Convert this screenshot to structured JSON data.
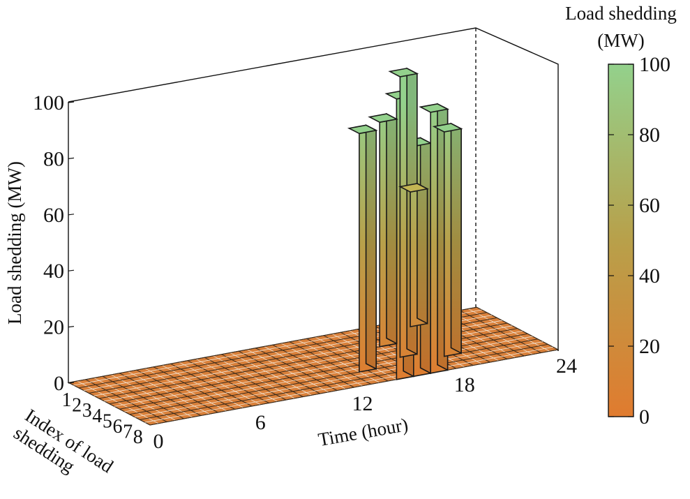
{
  "chart_data": {
    "type": "bar3d",
    "zlabel": "Load shedding (MW)",
    "xlabel": "Time (hour)",
    "ylabel": "Index of load shedding",
    "x_ticks": [
      "0",
      "6",
      "12",
      "18",
      "24"
    ],
    "y_ticks": [
      "8",
      "7",
      "6",
      "5",
      "4",
      "3",
      "2",
      "1"
    ],
    "z_ticks": [
      "0",
      "20",
      "40",
      "60",
      "80",
      "100"
    ],
    "xlim": [
      0,
      24
    ],
    "ylim": [
      1,
      8
    ],
    "zlim": [
      0,
      100
    ],
    "colorbar": {
      "title_line1": "Load shedding",
      "title_line2": "(MW)",
      "ticks": [
        "0",
        "20",
        "40",
        "60",
        "80",
        "100"
      ],
      "range": [
        0,
        100
      ],
      "color_low": "#e07b2f",
      "color_high": "#93d18c"
    },
    "bars": [
      {
        "hour": 15,
        "index": 8,
        "value": 100
      },
      {
        "hour": 16,
        "index": 8,
        "value": 82
      },
      {
        "hour": 17,
        "index": 8,
        "value": 93
      },
      {
        "hour": 14,
        "index": 6,
        "value": 85
      },
      {
        "hour": 17,
        "index": 5,
        "value": 100
      },
      {
        "hour": 17,
        "index": 3,
        "value": 80
      },
      {
        "hour": 19,
        "index": 6,
        "value": 80
      },
      {
        "hour": 20,
        "index": 1,
        "value": 48
      }
    ]
  }
}
